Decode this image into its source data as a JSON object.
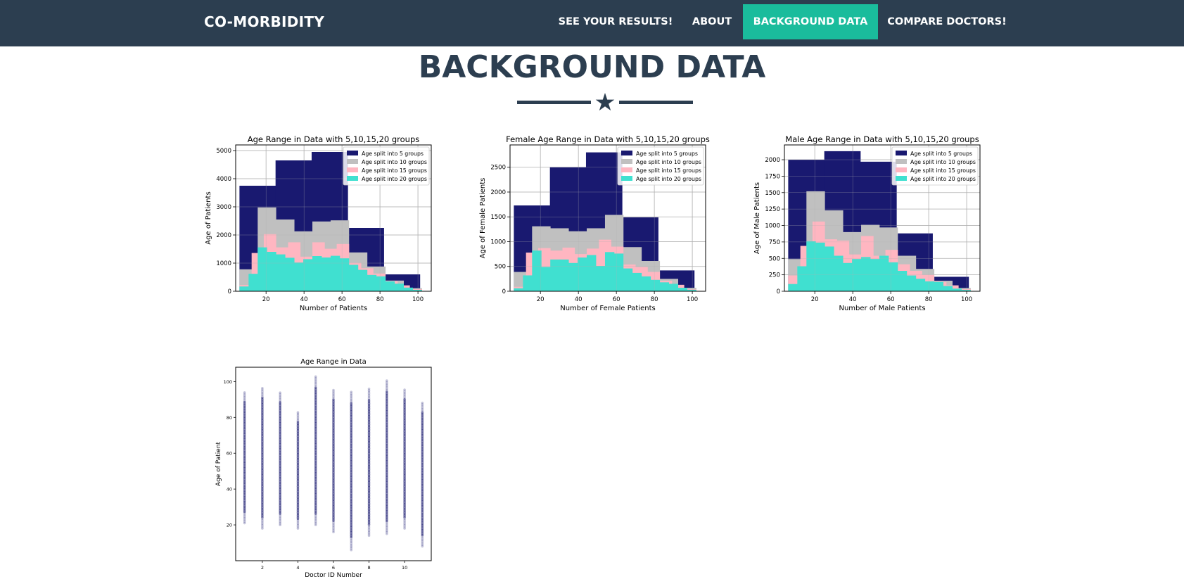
{
  "brand": "CO-MORBIDITY",
  "nav": {
    "results": "SEE YOUR RESULTS!",
    "about": "ABOUT",
    "background": "BACKGROUND DATA",
    "compare": "COMPARE DOCTORS!"
  },
  "page_title": "BACKGROUND DATA",
  "colors": {
    "navbar": "#2c3e50",
    "accent": "#1abc9c",
    "title": "#2c3e50",
    "series_5": "#191970",
    "series_10": "#c0c0c0",
    "series_15": "#ffb6c1",
    "series_20": "#40e0d0"
  },
  "divider_icon": "star-icon",
  "chart_data": [
    {
      "id": "all",
      "type": "bar",
      "histtype": "stepfilled",
      "title": "Age Range in Data with 5,10,15,20 groups",
      "xlabel": "Number of Patients",
      "ylabel": "Age of Patients",
      "xlim": [
        4,
        107
      ],
      "ylim": [
        0,
        5200
      ],
      "xticks": [
        20,
        40,
        60,
        80,
        100
      ],
      "yticks": [
        0,
        1000,
        2000,
        3000,
        4000,
        5000
      ],
      "grid": true,
      "legend_position": "top-right",
      "series": [
        {
          "name": "Age split into 5 groups",
          "color": "#191970",
          "edges": [
            6,
            25,
            44,
            63,
            82,
            101,
            103
          ],
          "values": [
            3750,
            4650,
            4950,
            2250,
            600,
            0
          ]
        },
        {
          "name": "Age split into 10 groups",
          "color": "#c0c0c0",
          "edges": [
            6,
            15.6,
            25.2,
            34.8,
            44.4,
            54,
            63.6,
            73.2,
            82.8,
            92.4,
            102
          ],
          "values": [
            780,
            2980,
            2550,
            2130,
            2480,
            2520,
            1380,
            880,
            380,
            110
          ]
        },
        {
          "name": "Age split into 15 groups",
          "color": "#ffb6c1",
          "edges": [
            6,
            12.4,
            18.8,
            25.2,
            31.6,
            38,
            44.4,
            50.8,
            57.2,
            63.6,
            70,
            76.4,
            82.8,
            89.2,
            95.6,
            102
          ],
          "values": [
            220,
            1360,
            2030,
            1560,
            1740,
            1230,
            1740,
            1510,
            1680,
            1010,
            820,
            630,
            360,
            210,
            70
          ]
        },
        {
          "name": "Age split into 20 groups",
          "color": "#40e0d0",
          "edges": [
            6,
            10.8,
            15.6,
            20.4,
            25.2,
            30,
            34.8,
            39.6,
            44.4,
            49.2,
            54,
            58.8,
            63.6,
            68.4,
            73.2,
            78,
            82.8,
            87.6,
            92.4,
            97.2,
            102
          ],
          "values": [
            170,
            620,
            1560,
            1400,
            1310,
            1190,
            1020,
            1140,
            1250,
            1200,
            1260,
            1170,
            940,
            760,
            580,
            530,
            350,
            270,
            130,
            50
          ]
        }
      ]
    },
    {
      "id": "female",
      "type": "bar",
      "histtype": "stepfilled",
      "title": "Female Age Range in Data with 5,10,15,20 groups",
      "xlabel": "Number of Female Patients",
      "ylabel": "Age of Female Patients",
      "xlim": [
        4,
        107
      ],
      "ylim": [
        0,
        2950
      ],
      "xticks": [
        20,
        40,
        60,
        80,
        100
      ],
      "yticks": [
        0,
        500,
        1000,
        1500,
        2000,
        2500
      ],
      "grid": true,
      "legend_position": "top-right",
      "series": [
        {
          "name": "Age split into 5 groups",
          "color": "#191970",
          "edges": [
            6,
            25,
            44,
            63,
            82,
            101,
            103
          ],
          "values": [
            1730,
            2500,
            2800,
            1490,
            420,
            0
          ]
        },
        {
          "name": "Age split into 10 groups",
          "color": "#c0c0c0",
          "edges": [
            6,
            15.6,
            25.2,
            34.8,
            44.4,
            54,
            63.6,
            73.2,
            82.8,
            92.4,
            102
          ],
          "values": [
            390,
            1310,
            1270,
            1210,
            1270,
            1540,
            890,
            610,
            250,
            70
          ]
        },
        {
          "name": "Age split into 15 groups",
          "color": "#ffb6c1",
          "edges": [
            6,
            12.4,
            18.8,
            25.2,
            31.6,
            38,
            44.4,
            50.8,
            57.2,
            63.6,
            70,
            76.4,
            82.8,
            89.2,
            95.6,
            102
          ],
          "values": [
            90,
            780,
            870,
            820,
            880,
            750,
            860,
            1040,
            900,
            540,
            490,
            390,
            210,
            130,
            40
          ]
        },
        {
          "name": "Age split into 20 groups",
          "color": "#40e0d0",
          "edges": [
            6,
            10.8,
            15.6,
            20.4,
            25.2,
            30,
            34.8,
            39.6,
            44.4,
            49.2,
            54,
            58.8,
            63.6,
            68.4,
            73.2,
            78,
            82.8,
            87.6,
            92.4,
            97.2,
            102
          ],
          "values": [
            60,
            320,
            820,
            490,
            640,
            640,
            570,
            680,
            730,
            510,
            790,
            760,
            460,
            370,
            300,
            230,
            180,
            150,
            70,
            30
          ]
        }
      ]
    },
    {
      "id": "male",
      "type": "bar",
      "histtype": "stepfilled",
      "title": "Male Age Range in Data with 5,10,15,20 groups",
      "xlabel": "Number of Male Patients",
      "ylabel": "Age of Male Patients",
      "xlim": [
        4,
        107
      ],
      "ylim": [
        0,
        2225
      ],
      "xticks": [
        20,
        40,
        60,
        80,
        100
      ],
      "yticks": [
        0,
        250,
        500,
        750,
        1000,
        1250,
        1500,
        1750,
        2000
      ],
      "grid": true,
      "legend_position": "top-right",
      "series": [
        {
          "name": "Age split into 5 groups",
          "color": "#191970",
          "edges": [
            6,
            25,
            44,
            63,
            82,
            101,
            103
          ],
          "values": [
            2000,
            2130,
            1970,
            880,
            220,
            0
          ]
        },
        {
          "name": "Age split into 10 groups",
          "color": "#c0c0c0",
          "edges": [
            6,
            15.6,
            25.2,
            34.8,
            44.4,
            54,
            63.6,
            73.2,
            82.8,
            92.4,
            102
          ],
          "values": [
            490,
            1520,
            1230,
            900,
            1010,
            970,
            540,
            340,
            160,
            50
          ]
        },
        {
          "name": "Age split into 15 groups",
          "color": "#ffb6c1",
          "edges": [
            6,
            12.4,
            18.8,
            25.2,
            31.6,
            38,
            44.4,
            50.8,
            57.2,
            63.6,
            70,
            76.4,
            82.8,
            89.2,
            95.6,
            102
          ],
          "values": [
            240,
            690,
            1060,
            790,
            770,
            560,
            840,
            540,
            630,
            410,
            310,
            250,
            140,
            90,
            30
          ]
        },
        {
          "name": "Age split into 20 groups",
          "color": "#40e0d0",
          "edges": [
            6,
            10.8,
            15.6,
            20.4,
            25.2,
            30,
            34.8,
            39.6,
            44.4,
            49.2,
            54,
            58.8,
            63.6,
            68.4,
            73.2,
            78,
            82.8,
            87.6,
            92.4,
            97.2,
            102
          ],
          "values": [
            110,
            380,
            760,
            740,
            680,
            540,
            430,
            490,
            520,
            490,
            540,
            440,
            310,
            240,
            190,
            150,
            140,
            80,
            40,
            20
          ]
        }
      ]
    },
    {
      "id": "doctor-scatter",
      "type": "scatter",
      "title": "Age Range in Data",
      "xlabel": "Doctor ID Number",
      "ylabel": "Age of Patient",
      "xlim": [
        0.5,
        11.5
      ],
      "ylim": [
        0,
        108
      ],
      "xticks": [
        2,
        4,
        6,
        8,
        10
      ],
      "yticks": [
        20,
        40,
        60,
        80,
        100
      ],
      "grid": false,
      "color": "#191970",
      "doctors": [
        {
          "x": 1,
          "min": 21,
          "max": 94
        },
        {
          "x": 2,
          "min": 18,
          "max": 97
        },
        {
          "x": 3,
          "min": 20,
          "max": 94
        },
        {
          "x": 4,
          "min": 18,
          "max": 83
        },
        {
          "x": 5,
          "min": 20,
          "max": 103
        },
        {
          "x": 6,
          "min": 16,
          "max": 96
        },
        {
          "x": 7,
          "min": 6,
          "max": 95
        },
        {
          "x": 8,
          "min": 14,
          "max": 96
        },
        {
          "x": 9,
          "min": 15,
          "max": 101
        },
        {
          "x": 10,
          "min": 18,
          "max": 96
        },
        {
          "x": 11,
          "min": 8,
          "max": 89
        }
      ]
    }
  ]
}
